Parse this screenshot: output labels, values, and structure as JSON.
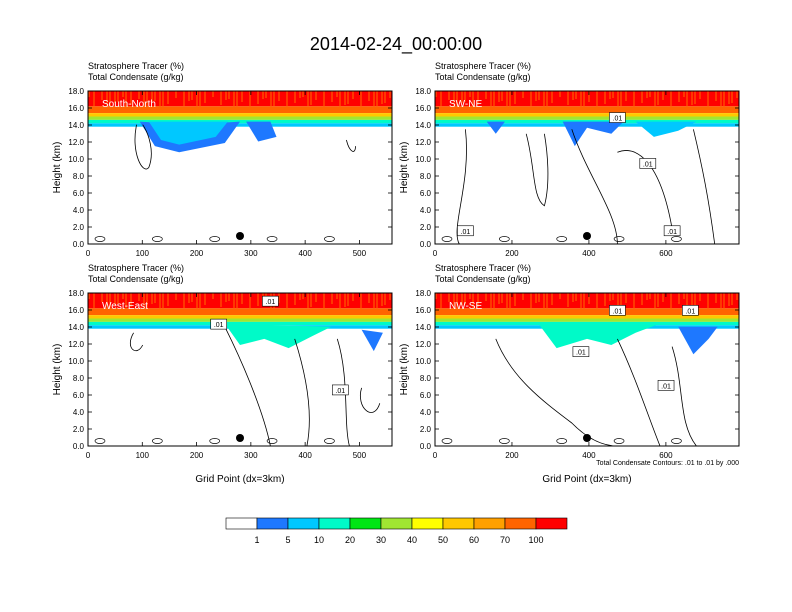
{
  "title": "2014-02-24_00:00:00",
  "chart_data": [
    {
      "type": "heatmap",
      "label1": "Stratosphere Tracer   (%)",
      "label2": "Total Condensate   (g/kg)",
      "inset": "South-North",
      "ylabel": "Height (km)",
      "xlabel": "",
      "xlim": [
        0,
        560
      ],
      "ylim": [
        0,
        18
      ],
      "xticks": [
        "0",
        "100",
        "200",
        "300",
        "400",
        "500"
      ],
      "yticks": [
        "0.0",
        "2.0",
        "4.0",
        "6.0",
        "8.0",
        "10.0",
        "12.0",
        "14.0",
        "16.0",
        "18.0"
      ],
      "marker_x": 280,
      "contour_labels": [],
      "footnote": ""
    },
    {
      "type": "heatmap",
      "label1": "Stratosphere Tracer   (%)",
      "label2": "Total Condensate   (g/kg)",
      "inset": "SW-NE",
      "ylabel": "Height (km)",
      "xlabel": "",
      "xlim": [
        0,
        790
      ],
      "ylim": [
        0,
        18
      ],
      "xticks": [
        "0",
        "200",
        "400",
        "600"
      ],
      "yticks": [
        "0.0",
        "2.0",
        "4.0",
        "6.0",
        "8.0",
        "10.0",
        "12.0",
        "14.0",
        "16.0",
        "18.0"
      ],
      "marker_x": 395,
      "contour_labels": [
        ".01",
        ".01",
        ".01",
        ".01"
      ],
      "footnote": ""
    },
    {
      "type": "heatmap",
      "label1": "Stratosphere Tracer   (%)",
      "label2": "Total Condensate   (g/kg)",
      "inset": "West-East",
      "ylabel": "Height (km)",
      "xlabel": "Grid Point (dx=3km)",
      "xlim": [
        0,
        560
      ],
      "ylim": [
        0,
        18
      ],
      "xticks": [
        "0",
        "100",
        "200",
        "300",
        "400",
        "500"
      ],
      "yticks": [
        "0.0",
        "2.0",
        "4.0",
        "6.0",
        "8.0",
        "10.0",
        "12.0",
        "14.0",
        "16.0",
        "18.0"
      ],
      "marker_x": 280,
      "contour_labels": [
        ".01",
        ".01",
        ".01"
      ],
      "footnote": ""
    },
    {
      "type": "heatmap",
      "label1": "Stratosphere Tracer   (%)",
      "label2": "Total Condensate   (g/kg)",
      "inset": "NW-SE",
      "ylabel": "Height (km)",
      "xlabel": "Grid Point (dx=3km)",
      "xlim": [
        0,
        790
      ],
      "ylim": [
        0,
        18
      ],
      "xticks": [
        "0",
        "200",
        "400",
        "600"
      ],
      "yticks": [
        "0.0",
        "2.0",
        "4.0",
        "6.0",
        "8.0",
        "10.0",
        "12.0",
        "14.0",
        "16.0",
        "18.0"
      ],
      "marker_x": 395,
      "contour_labels": [
        ".01",
        ".01",
        ".01",
        ".01"
      ],
      "footnote": "Total Condensate Contours: .01 to .01 by .000"
    }
  ],
  "colorbar": {
    "labels": [
      "1",
      "5",
      "10",
      "20",
      "30",
      "40",
      "50",
      "60",
      "70",
      "100"
    ],
    "colors": [
      "#ffffff",
      "#1e78ff",
      "#00c8ff",
      "#00fac8",
      "#00e614",
      "#a0e632",
      "#ffff00",
      "#ffc800",
      "#ffa000",
      "#ff6400",
      "#ff0000"
    ]
  }
}
